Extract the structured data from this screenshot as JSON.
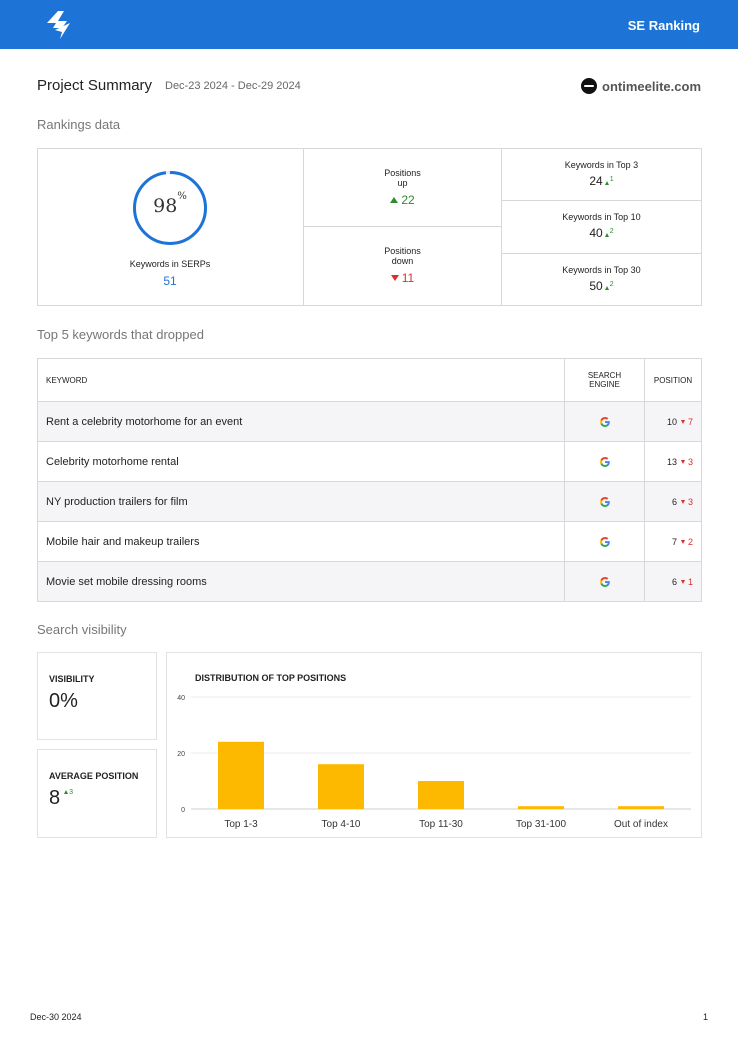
{
  "header": {
    "brand": "SE Ranking"
  },
  "summary": {
    "title": "Project Summary",
    "date_range": "Dec-23 2024 - Dec-29 2024",
    "site": "ontimeelite.com"
  },
  "rankings": {
    "heading": "Rankings data",
    "serps_percent": "98",
    "serps_percent_sign": "%",
    "serps_fraction": 0.98,
    "serps_label": "Keywords in SERPs",
    "serps_count": "51",
    "positions_up_label": "Positions up",
    "positions_up": "22",
    "positions_down_label": "Positions down",
    "positions_down": "11",
    "top3_label": "Keywords in Top 3",
    "top3": "24",
    "top3_delta": "1",
    "top10_label": "Keywords in Top 10",
    "top10": "40",
    "top10_delta": "2",
    "top30_label": "Keywords in Top 30",
    "top30": "50",
    "top30_delta": "2"
  },
  "dropped": {
    "heading": "Top 5 keywords that dropped",
    "headers": {
      "keyword": "KEYWORD",
      "engine": "SEARCH\nENGINE",
      "position": "POSITION"
    },
    "rows": [
      {
        "keyword": "Rent a celebrity motorhome for an event",
        "position": "10",
        "change": "7"
      },
      {
        "keyword": "Celebrity motorhome rental",
        "position": "13",
        "change": "3"
      },
      {
        "keyword": "NY production trailers for film",
        "position": "6",
        "change": "3"
      },
      {
        "keyword": "Mobile hair and makeup trailers",
        "position": "7",
        "change": "2"
      },
      {
        "keyword": "Movie set mobile dressing rooms",
        "position": "6",
        "change": "1"
      }
    ]
  },
  "visibility": {
    "heading": "Search visibility",
    "visibility_label": "VISIBILITY",
    "visibility_value": "0%",
    "avg_label": "AVERAGE POSITION",
    "avg_value": "8",
    "avg_delta": "3"
  },
  "chart_data": {
    "type": "bar",
    "title": "DISTRIBUTION OF TOP POSITIONS",
    "categories": [
      "Top 1-3",
      "Top 4-10",
      "Top 11-30",
      "Top 31-100",
      "Out of index"
    ],
    "values": [
      24,
      16,
      10,
      1,
      1
    ],
    "ylim": [
      0,
      40
    ],
    "yticks": [
      0,
      20,
      40
    ],
    "color": "#fdb900",
    "grid": true
  },
  "footer": {
    "date": "Dec-30 2024",
    "page": "1"
  }
}
